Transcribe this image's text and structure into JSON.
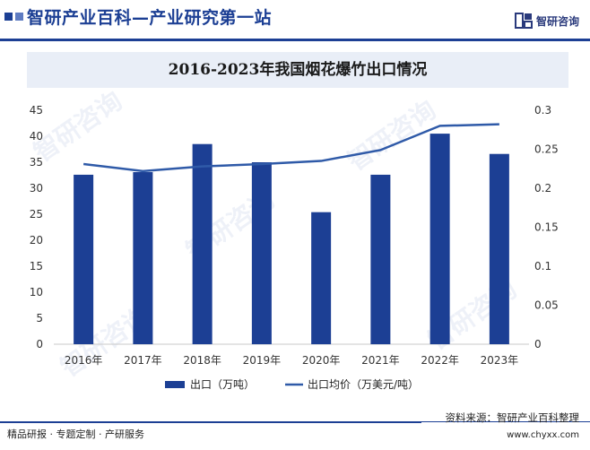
{
  "header": {
    "title": "智研产业百科—产业研究第一站",
    "brand_name": "智研咨询",
    "logo_icon": "zhiyan-logo-icon"
  },
  "watermark": "智研咨询",
  "chart_data": {
    "type": "bar+line",
    "title": "2016-2023年我国烟花爆竹出口情况",
    "categories": [
      "2016年",
      "2017年",
      "2018年",
      "2019年",
      "2020年",
      "2021年",
      "2022年",
      "2023年"
    ],
    "series": [
      {
        "name": "出口（万吨）",
        "type": "bar",
        "axis": "left",
        "color": "#1c3f94",
        "values": [
          32.6,
          33.1,
          38.5,
          35.0,
          25.4,
          32.6,
          40.5,
          36.6
        ]
      },
      {
        "name": "出口均价（万美元/吨）",
        "type": "line",
        "axis": "right",
        "color": "#2f5aa8",
        "values": [
          0.231,
          0.222,
          0.228,
          0.231,
          0.235,
          0.249,
          0.28,
          0.282
        ]
      }
    ],
    "y_left": {
      "min": 0,
      "max": 45,
      "ticks": [
        "0",
        "5",
        "10",
        "15",
        "20",
        "25",
        "30",
        "35",
        "40",
        "45"
      ]
    },
    "y_right": {
      "min": 0,
      "max": 0.3,
      "ticks": [
        "0",
        "0.05",
        "0.1",
        "0.15",
        "0.2",
        "0.25",
        "0.3"
      ]
    },
    "grid": false,
    "legend_position": "bottom"
  },
  "footer": {
    "tagline": "精品研报 · 专题定制 · 产研服务",
    "source": "资料来源：智研产业百科整理",
    "url": "www.chyxx.com"
  }
}
